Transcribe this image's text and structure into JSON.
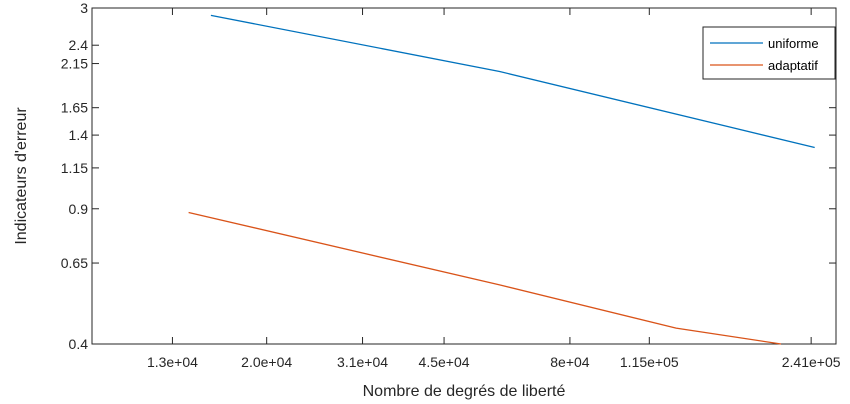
{
  "chart_data": {
    "type": "line",
    "xlabel": "Nombre de degrés de liberté",
    "ylabel": "Indicateurs d'erreur",
    "xscale": "log",
    "yscale": "log",
    "xlim": [
      9000,
      270000
    ],
    "ylim": [
      0.4,
      3
    ],
    "xticks": [
      13000,
      20000,
      31000,
      45000,
      80000,
      115000,
      241000
    ],
    "xtick_labels": [
      "1.3e+04",
      "2.0e+04",
      "3.1e+04",
      "4.5e+04",
      "8e+04",
      "1.15e+05",
      "2.41e+05"
    ],
    "yticks": [
      0.4,
      0.65,
      0.9,
      1.15,
      1.4,
      1.65,
      2.15,
      2.4,
      3
    ],
    "ytick_labels": [
      "0.4",
      "0.65",
      "0.9",
      "1.15",
      "1.4",
      "1.65",
      "2.15",
      "2.4",
      "3"
    ],
    "grid": false,
    "legend_position": "top-right",
    "series": [
      {
        "name": "uniforme",
        "color": "#0072bd",
        "x": [
          15500,
          58000,
          245000
        ],
        "y": [
          2.87,
          2.05,
          1.3
        ]
      },
      {
        "name": "adaptatif",
        "color": "#d95319",
        "x": [
          14000,
          58000,
          130000,
          210000
        ],
        "y": [
          0.88,
          0.57,
          0.44,
          0.4
        ]
      }
    ]
  }
}
